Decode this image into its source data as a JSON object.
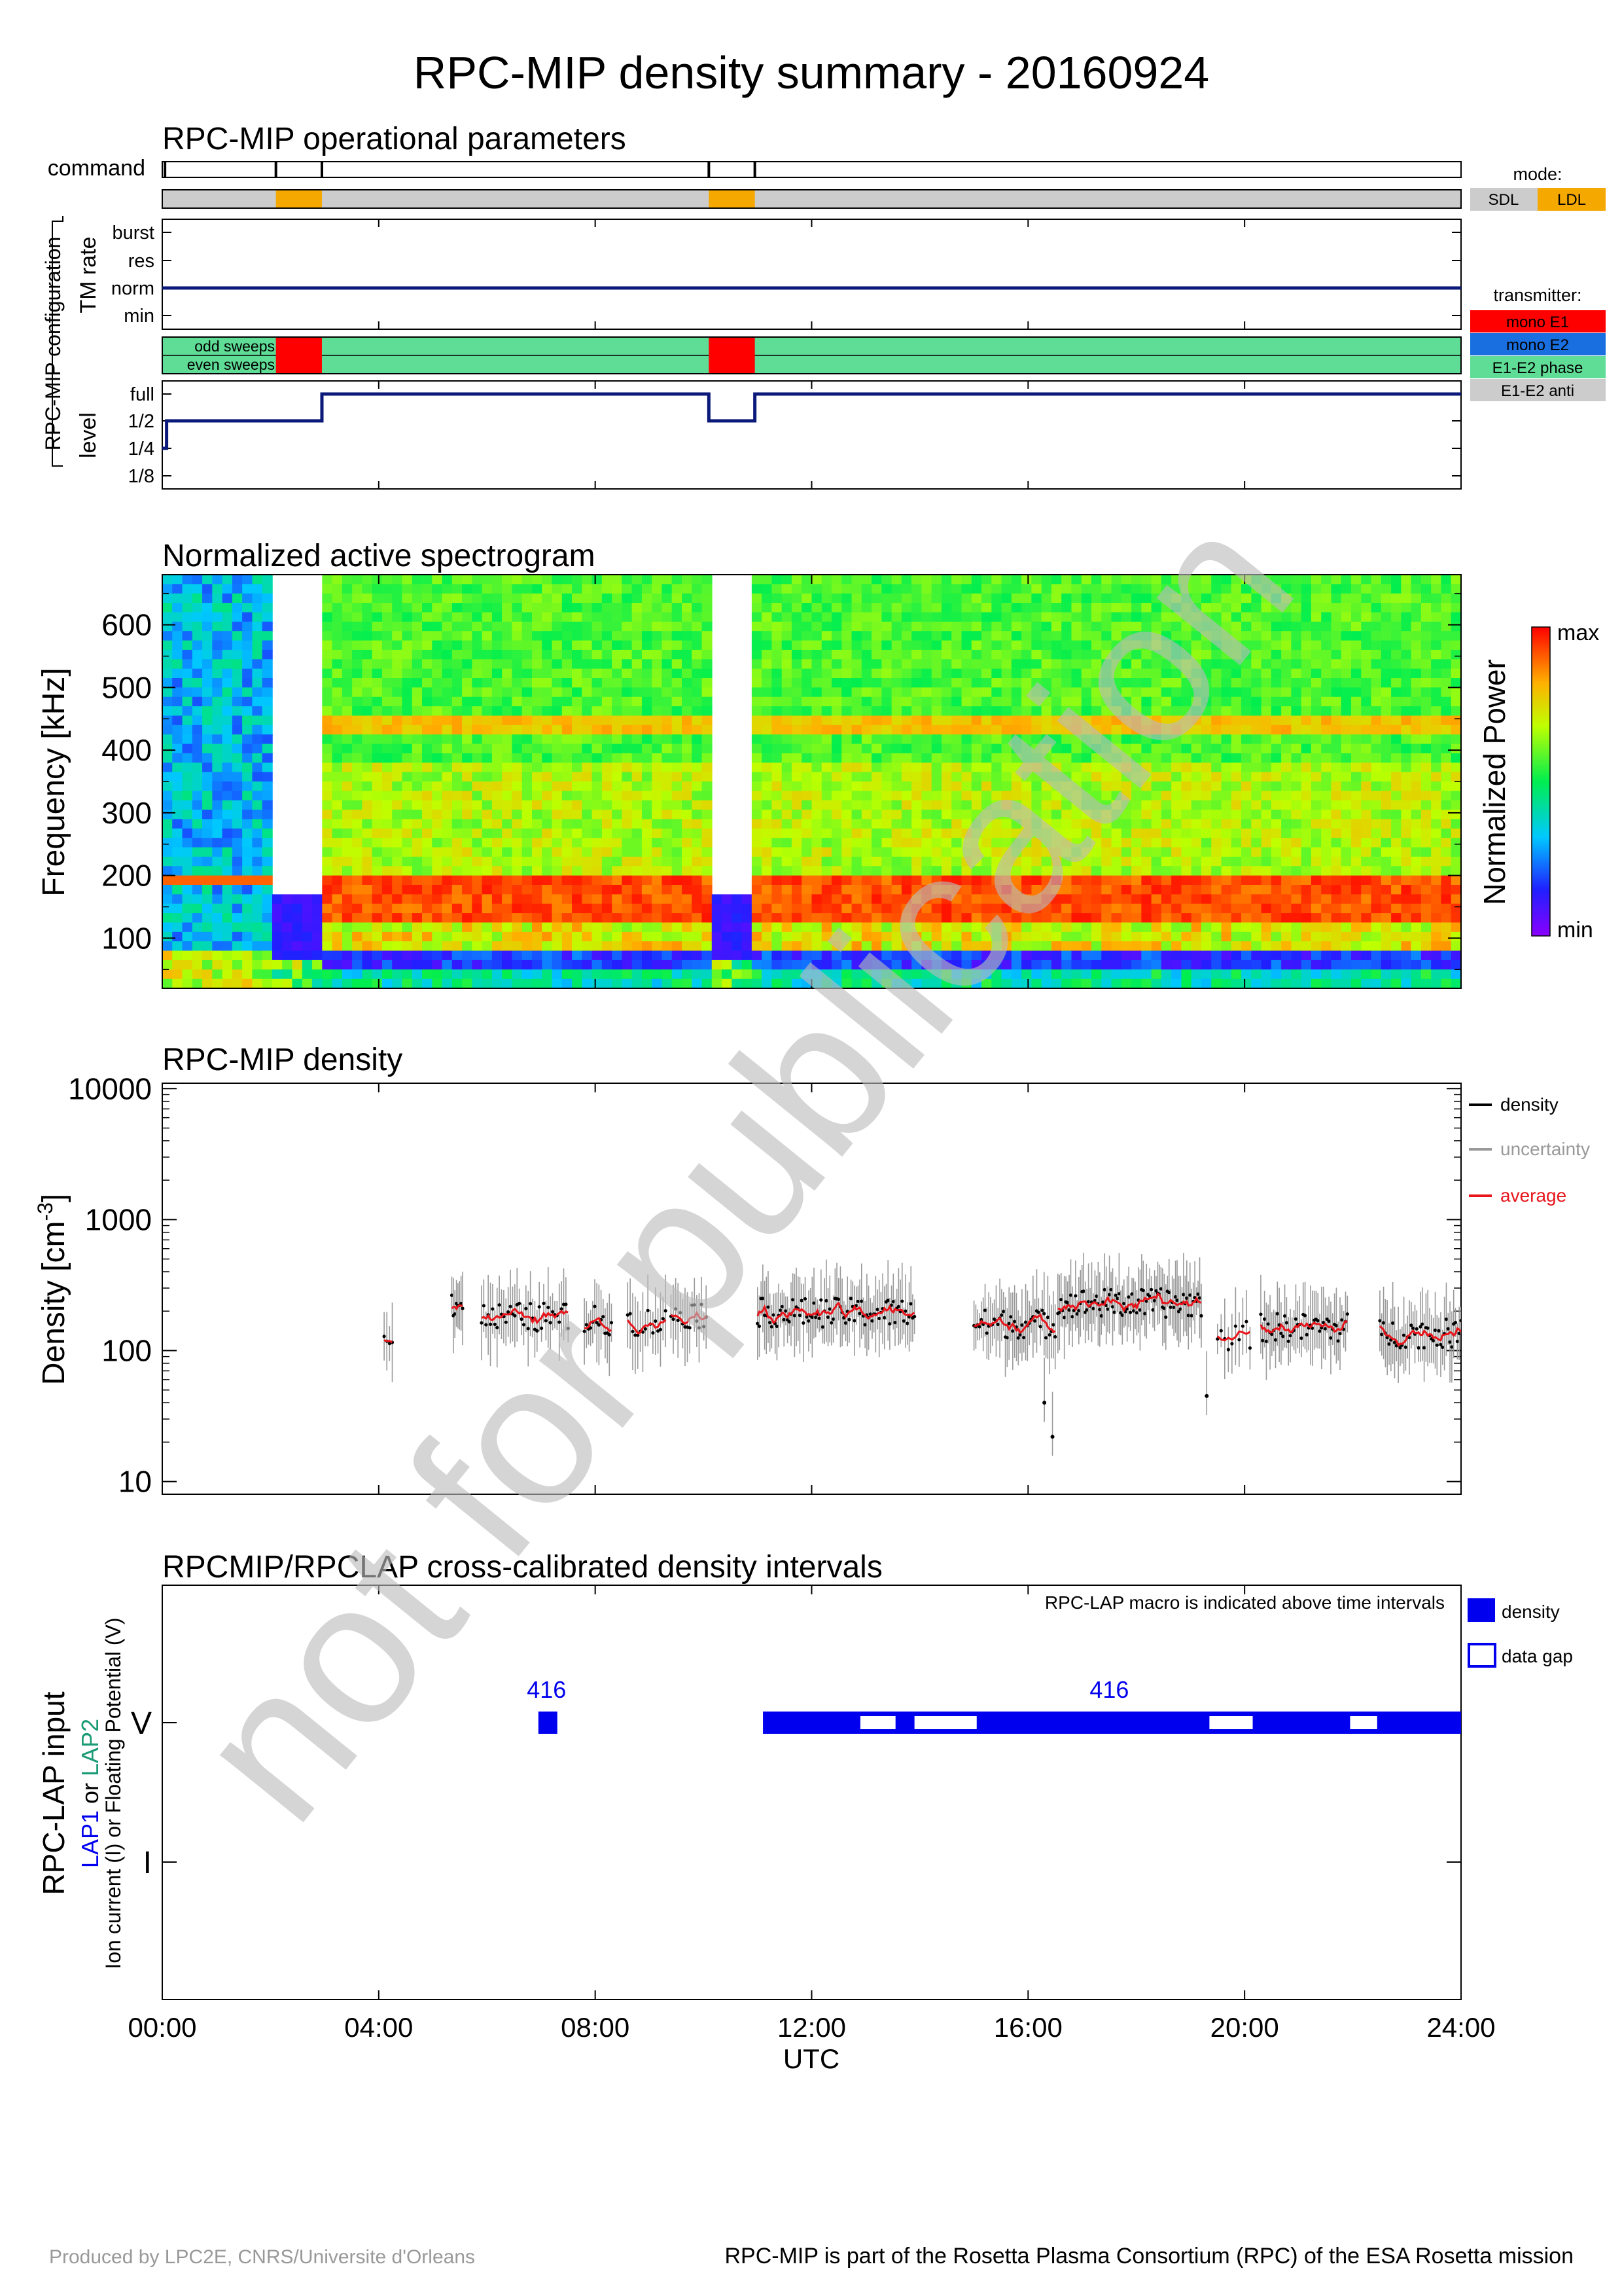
{
  "page": {
    "title": "RPC-MIP density summary - 20160924",
    "watermark": "not for publication",
    "footer_left": "Produced by LPC2E, CNRS/Universite d'Orleans",
    "footer_right": "RPC-MIP is part of the Rosetta Plasma Consortium (RPC) of the ESA Rosetta mission"
  },
  "colors": {
    "navy": "#0b1a7a",
    "mode_sdl": "#cccccc",
    "mode_ldl": "#f5a800",
    "tx_mono_e1": "#ff0000",
    "tx_mono_e2": "#1a6fe0",
    "tx_e1e2_phase": "#5fdc95",
    "tx_e1e2_anti": "#cccccc",
    "density_point": "#000000",
    "uncertainty": "#999999",
    "average": "#e8141a",
    "lap_blue": "#0000ee",
    "lap2_green": "#1a9a75"
  },
  "x_axis": {
    "range_hours": [
      0,
      24
    ],
    "tick_labels": [
      "00:00",
      "04:00",
      "08:00",
      "12:00",
      "16:00",
      "20:00",
      "24:00"
    ],
    "label": "UTC"
  },
  "operational": {
    "title": "RPC-MIP operational parameters",
    "ylabel_group": "RPC-MIP configuration",
    "command_label": "command",
    "command_ticks_h": [
      0.05,
      2.1,
      2.95,
      10.1,
      10.95
    ],
    "mode_legend_title": "mode:",
    "mode_labels": [
      "SDL",
      "LDL"
    ],
    "mode_ldl_intervals_h": [
      [
        2.1,
        2.95
      ],
      [
        10.1,
        10.95
      ]
    ],
    "tm_rate_ylabel": "TM rate",
    "tm_rate_levels": [
      "burst",
      "res",
      "norm",
      "min"
    ],
    "tm_rate_value": "norm",
    "transmitter_legend_title": "transmitter:",
    "transmitter_labels": [
      "mono E1",
      "mono E2",
      "E1-E2 phase",
      "E1-E2 anti"
    ],
    "sweep_labels": [
      "odd sweeps",
      "even sweeps"
    ],
    "mono_e1_intervals_h": [
      [
        2.1,
        2.95
      ],
      [
        10.1,
        10.95
      ]
    ],
    "level_ylabel": "level",
    "level_ticks": [
      "full",
      "1/2",
      "1/4",
      "1/8"
    ],
    "level_steps": [
      {
        "t": 0.0,
        "level": "1/4"
      },
      {
        "t": 0.08,
        "level": "1/2"
      },
      {
        "t": 2.95,
        "level": "full"
      },
      {
        "t": 10.1,
        "level": "1/2"
      },
      {
        "t": 10.95,
        "level": "full"
      },
      {
        "t": 24.0,
        "level": "full"
      }
    ]
  },
  "spectrogram": {
    "title": "Normalized active spectrogram",
    "ylabel": "Frequency [kHz]",
    "ylim": [
      20,
      680
    ],
    "yticks": [
      100,
      200,
      300,
      400,
      500,
      600
    ],
    "colorbar_label": "Normalized Power",
    "colorbar_max": "max",
    "colorbar_min": "min",
    "gap_intervals_h": [
      [
        2.1,
        2.95
      ],
      [
        10.1,
        10.95
      ]
    ],
    "gap_filled_below_khz": 175
  },
  "density": {
    "title": "RPC-MIP density",
    "ylabel_prefix": "Density [cm",
    "ylabel_exponent": "-3",
    "ylabel_suffix": "]",
    "scale": "log",
    "ylim": [
      8,
      11000
    ],
    "ytick_labels": [
      "10",
      "100",
      "1000",
      "10000"
    ],
    "legend": [
      "density",
      "uncertainty",
      "average"
    ],
    "segments": [
      {
        "t0": 4.1,
        "t1": 4.25,
        "base": 140,
        "points": 4
      },
      {
        "t0": 5.35,
        "t1": 5.55,
        "base": 230,
        "points": 8
      },
      {
        "t0": 5.9,
        "t1": 7.5,
        "base": 180,
        "points": 40
      },
      {
        "t0": 7.8,
        "t1": 8.3,
        "base": 170,
        "points": 14
      },
      {
        "t0": 8.6,
        "t1": 9.3,
        "base": 165,
        "points": 16
      },
      {
        "t0": 9.4,
        "t1": 10.05,
        "base": 190,
        "points": 16
      },
      {
        "t0": 11.0,
        "t1": 13.9,
        "base": 195,
        "points": 90
      },
      {
        "t0": 15.0,
        "t1": 16.5,
        "base": 160,
        "points": 45
      },
      {
        "t0": 16.55,
        "t1": 19.2,
        "base": 230,
        "points": 90
      },
      {
        "t0": 19.5,
        "t1": 20.1,
        "base": 130,
        "points": 10
      },
      {
        "t0": 20.3,
        "t1": 21.9,
        "base": 150,
        "points": 48
      },
      {
        "t0": 22.5,
        "t1": 24.0,
        "base": 135,
        "points": 45
      }
    ],
    "dips": [
      {
        "t": 16.3,
        "value": 40
      },
      {
        "t": 16.45,
        "value": 22
      },
      {
        "t": 19.3,
        "value": 45
      }
    ]
  },
  "lap": {
    "title": "RPCMIP/RPCLAP cross-calibrated density intervals",
    "note": "RPC-LAP macro is indicated above time intervals",
    "ylabel_main": "RPC-LAP input",
    "ylabel_lap1": "LAP1",
    "ylabel_or": " or ",
    "ylabel_lap2": "LAP2",
    "ylabel_line3": "Ion current (I) or Floating Potential (V)",
    "ytick_labels": [
      "V",
      "I"
    ],
    "legend": [
      "density",
      "data gap"
    ],
    "density_intervals_h": [
      [
        6.95,
        7.3
      ],
      [
        11.1,
        24.0
      ]
    ],
    "data_gaps_h": [
      [
        12.9,
        13.55
      ],
      [
        13.9,
        15.05
      ],
      [
        19.35,
        20.15
      ],
      [
        21.95,
        22.45
      ]
    ],
    "macros": [
      {
        "t": 7.1,
        "label": "416"
      },
      {
        "t": 17.5,
        "label": "416"
      }
    ]
  }
}
